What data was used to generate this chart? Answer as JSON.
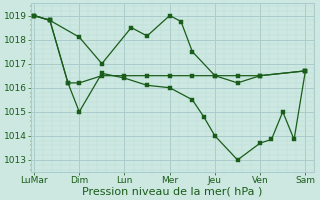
{
  "background_color": "#cce8e0",
  "grid_major_color": "#aacccc",
  "grid_minor_color": "#bbddd8",
  "line_color": "#1a5c1a",
  "xlabel": "Pression niveau de la mer( hPa )",
  "xlabel_fontsize": 8,
  "yticks": [
    1013,
    1014,
    1015,
    1016,
    1017,
    1018,
    1019
  ],
  "ylim": [
    1012.5,
    1019.5
  ],
  "xtick_labels": [
    "LuMar",
    "Dim",
    "Lun",
    "Mer",
    "Jeu",
    "Ven",
    "Sam"
  ],
  "xtick_positions": [
    0,
    2,
    4,
    6,
    8,
    10,
    12
  ],
  "tick_fontsize": 6.5,
  "s1x": [
    0,
    0.7,
    2,
    3,
    4.3,
    5,
    6,
    6.5,
    7,
    8,
    9,
    10,
    12
  ],
  "s1y": [
    1019,
    1018.8,
    1018.1,
    1017.0,
    1018.5,
    1018.15,
    1019.0,
    1018.75,
    1017.5,
    1016.5,
    1016.2,
    1016.5,
    1016.7
  ],
  "s2x": [
    0,
    0.7,
    1.5,
    2,
    3,
    4,
    5,
    6,
    7,
    8,
    9,
    10,
    12
  ],
  "s2y": [
    1019,
    1018.8,
    1016.2,
    1016.2,
    1016.5,
    1016.5,
    1016.5,
    1016.5,
    1016.5,
    1016.5,
    1016.5,
    1016.5,
    1016.7
  ],
  "s3x": [
    0,
    0.7,
    1.5,
    2,
    3,
    4,
    5,
    6,
    7,
    7.5,
    8,
    9,
    10,
    10.5,
    11,
    11.5,
    12
  ],
  "s3y": [
    1019,
    1018.8,
    1016.2,
    1015.0,
    1016.6,
    1016.4,
    1016.1,
    1016.0,
    1015.5,
    1014.8,
    1014.0,
    1013.0,
    1013.7,
    1013.85,
    1015.0,
    1013.85,
    1016.7
  ]
}
